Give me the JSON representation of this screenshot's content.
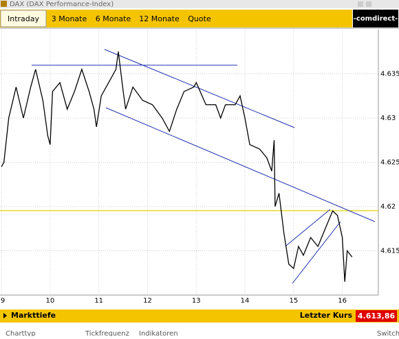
{
  "header": {
    "title": "DAX (DAX Performance-Index)",
    "logo": "-comdirect-"
  },
  "tabs": [
    "Intraday",
    "3 Monate",
    "6 Monate",
    "12 Monate",
    "Quote"
  ],
  "chart_data": {
    "type": "line",
    "x": [
      9.0,
      9.05,
      9.15,
      9.3,
      9.45,
      9.6,
      9.7,
      9.85,
      9.95,
      10.0,
      10.05,
      10.2,
      10.35,
      10.5,
      10.65,
      10.8,
      10.9,
      10.95,
      11.05,
      11.2,
      11.35,
      11.4,
      11.5,
      11.55,
      11.7,
      11.9,
      12.1,
      12.3,
      12.45,
      12.6,
      12.75,
      12.95,
      13.0,
      13.2,
      13.4,
      13.5,
      13.6,
      13.8,
      13.9,
      14.0,
      14.1,
      14.3,
      14.45,
      14.55,
      14.6,
      14.62,
      14.7,
      14.8,
      14.9,
      15.0,
      15.1,
      15.2,
      15.35,
      15.5,
      15.65,
      15.8,
      15.9,
      16.0,
      16.05,
      16.1,
      16.2
    ],
    "series": [
      {
        "name": "DAX",
        "color": "#000000",
        "values": [
          4.6245,
          4.625,
          4.63,
          4.6335,
          4.63,
          4.6335,
          4.6355,
          4.632,
          4.628,
          4.627,
          4.633,
          4.634,
          4.631,
          4.633,
          4.6355,
          4.633,
          4.631,
          4.629,
          4.6325,
          4.634,
          4.6355,
          4.6375,
          4.633,
          4.631,
          4.6335,
          4.632,
          4.6315,
          4.63,
          4.6285,
          4.631,
          4.633,
          4.6335,
          4.634,
          4.6315,
          4.6315,
          4.63,
          4.6315,
          4.6315,
          4.6325,
          4.63,
          4.627,
          4.6265,
          4.6255,
          4.624,
          4.6275,
          4.62,
          4.6215,
          4.617,
          4.6135,
          4.613,
          4.6155,
          4.6145,
          4.6165,
          4.6155,
          4.6175,
          4.6195,
          4.619,
          4.6165,
          4.6115,
          4.615,
          4.6143
        ]
      }
    ],
    "xlim": [
      8.97,
      16.74
    ],
    "xticks": [
      9,
      10,
      11,
      12,
      13,
      14,
      15,
      16
    ],
    "ylim": [
      4.61,
      4.64
    ],
    "yticks": [
      4.615,
      4.62,
      4.625,
      4.63,
      4.635
    ],
    "grid": true
  },
  "footer": {
    "depth": "Markttiefe",
    "last_label": "Letzter Kurs",
    "last_value": "4.613,86",
    "links": [
      "Charttyp",
      "Tickfrequenz",
      "Indikatoren",
      "Switch"
    ]
  }
}
